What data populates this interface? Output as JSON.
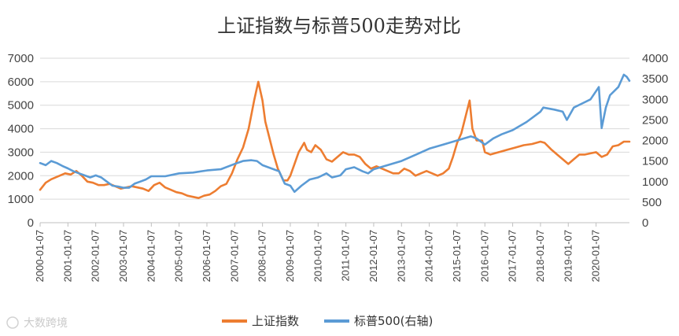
{
  "watermark": "大数跨境",
  "chart_data": {
    "type": "line",
    "title": "上证指数与标普500走势对比",
    "y_left": {
      "ticks": [
        "0",
        "1000",
        "2000",
        "3000",
        "4000",
        "5000",
        "6000",
        "7000"
      ],
      "range": [
        0,
        7000
      ]
    },
    "y_right": {
      "ticks": [
        "0",
        "500",
        "1000",
        "1500",
        "2000",
        "2500",
        "3000",
        "3500",
        "4000"
      ],
      "range": [
        0,
        4000
      ]
    },
    "x_range": [
      2000.0,
      2021.2
    ],
    "x_ticks": [
      {
        "label": "2000-01-07",
        "x": 2000.0
      },
      {
        "label": "2001-01-07",
        "x": 2001.0
      },
      {
        "label": "2002-01-07",
        "x": 2002.0
      },
      {
        "label": "2003-01-07",
        "x": 2003.0
      },
      {
        "label": "2004-01-07",
        "x": 2004.0
      },
      {
        "label": "2005-01-07",
        "x": 2005.0
      },
      {
        "label": "2006-01-07",
        "x": 2006.0
      },
      {
        "label": "2007-01-07",
        "x": 2007.0
      },
      {
        "label": "2008-01-07",
        "x": 2008.0
      },
      {
        "label": "2009-01-07",
        "x": 2009.0
      },
      {
        "label": "2010-01-07",
        "x": 2010.0
      },
      {
        "label": "2011-01-07",
        "x": 2011.0
      },
      {
        "label": "2012-01-07",
        "x": 2012.0
      },
      {
        "label": "2013-01-07",
        "x": 2013.0
      },
      {
        "label": "2014-01-07",
        "x": 2014.0
      },
      {
        "label": "2015-01-07",
        "x": 2015.0
      },
      {
        "label": "2016-01-07",
        "x": 2016.0
      },
      {
        "label": "2017-01-07",
        "x": 2017.0
      },
      {
        "label": "2018-01-07",
        "x": 2018.0
      },
      {
        "label": "2019-01-07",
        "x": 2019.0
      },
      {
        "label": "2020-01-07",
        "x": 2020.0
      }
    ],
    "grid": true,
    "legend_position": "bottom",
    "series": [
      {
        "name": "上证指数",
        "axis": "left",
        "color": "#ED7D31",
        "x": [
          2000.0,
          2000.2,
          2000.4,
          2000.6,
          2000.9,
          2001.1,
          2001.3,
          2001.5,
          2001.7,
          2001.9,
          2002.1,
          2002.3,
          2002.5,
          2002.7,
          2002.9,
          2003.1,
          2003.3,
          2003.5,
          2003.7,
          2003.9,
          2004.1,
          2004.3,
          2004.5,
          2004.7,
          2004.9,
          2005.1,
          2005.3,
          2005.5,
          2005.7,
          2005.9,
          2006.1,
          2006.3,
          2006.5,
          2006.7,
          2006.9,
          2007.1,
          2007.3,
          2007.5,
          2007.7,
          2007.85,
          2008.0,
          2008.1,
          2008.25,
          2008.4,
          2008.55,
          2008.75,
          2008.9,
          2009.0,
          2009.15,
          2009.3,
          2009.5,
          2009.6,
          2009.75,
          2009.9,
          2010.1,
          2010.3,
          2010.5,
          2010.7,
          2010.9,
          2011.1,
          2011.3,
          2011.5,
          2011.7,
          2011.9,
          2012.1,
          2012.3,
          2012.5,
          2012.7,
          2012.9,
          2013.1,
          2013.3,
          2013.5,
          2013.7,
          2013.9,
          2014.1,
          2014.3,
          2014.5,
          2014.7,
          2014.85,
          2015.0,
          2015.15,
          2015.3,
          2015.45,
          2015.55,
          2015.7,
          2015.9,
          2016.0,
          2016.2,
          2016.5,
          2016.8,
          2017.1,
          2017.4,
          2017.7,
          2018.0,
          2018.15,
          2018.4,
          2018.6,
          2018.8,
          2019.0,
          2019.2,
          2019.4,
          2019.6,
          2019.8,
          2020.0,
          2020.2,
          2020.4,
          2020.6,
          2020.8,
          2021.0,
          2021.2
        ],
        "y": [
          1400,
          1700,
          1850,
          1950,
          2100,
          2050,
          2200,
          2000,
          1750,
          1700,
          1600,
          1600,
          1650,
          1550,
          1450,
          1500,
          1550,
          1500,
          1450,
          1350,
          1600,
          1700,
          1500,
          1400,
          1300,
          1250,
          1150,
          1100,
          1050,
          1150,
          1200,
          1350,
          1550,
          1650,
          2100,
          2700,
          3200,
          4000,
          5200,
          6000,
          5200,
          4300,
          3600,
          2900,
          2300,
          1800,
          1800,
          2000,
          2500,
          3000,
          3400,
          3100,
          3000,
          3300,
          3100,
          2700,
          2600,
          2800,
          3000,
          2900,
          2900,
          2800,
          2500,
          2300,
          2400,
          2300,
          2200,
          2100,
          2100,
          2300,
          2200,
          2000,
          2100,
          2200,
          2100,
          2000,
          2100,
          2300,
          2800,
          3400,
          3800,
          4500,
          5200,
          4000,
          3500,
          3500,
          3000,
          2900,
          3000,
          3100,
          3200,
          3300,
          3350,
          3450,
          3400,
          3100,
          2900,
          2700,
          2500,
          2700,
          2900,
          2900,
          2950,
          3000,
          2800,
          2900,
          3250,
          3300,
          3450,
          3450
        ]
      },
      {
        "name": "标普500(右轴)",
        "axis": "right",
        "color": "#5B9BD5",
        "x": [
          2000.0,
          2000.2,
          2000.4,
          2000.6,
          2000.8,
          2001.0,
          2001.2,
          2001.4,
          2001.6,
          2001.8,
          2002.0,
          2002.2,
          2002.4,
          2002.6,
          2002.8,
          2003.0,
          2003.2,
          2003.4,
          2003.6,
          2003.8,
          2004.0,
          2004.5,
          2005.0,
          2005.5,
          2006.0,
          2006.5,
          2007.0,
          2007.3,
          2007.6,
          2007.8,
          2008.0,
          2008.2,
          2008.4,
          2008.6,
          2008.8,
          2009.0,
          2009.15,
          2009.4,
          2009.7,
          2010.0,
          2010.3,
          2010.5,
          2010.8,
          2011.0,
          2011.3,
          2011.6,
          2011.8,
          2012.0,
          2012.5,
          2013.0,
          2013.5,
          2014.0,
          2014.5,
          2015.0,
          2015.5,
          2015.7,
          2016.0,
          2016.3,
          2016.6,
          2017.0,
          2017.5,
          2018.0,
          2018.1,
          2018.5,
          2018.8,
          2018.95,
          2019.2,
          2019.5,
          2019.8,
          2020.0,
          2020.1,
          2020.2,
          2020.35,
          2020.5,
          2020.8,
          2021.0,
          2021.1,
          2021.2
        ],
        "y": [
          1450,
          1400,
          1500,
          1450,
          1380,
          1320,
          1250,
          1200,
          1150,
          1100,
          1150,
          1100,
          1000,
          900,
          880,
          850,
          850,
          950,
          1000,
          1050,
          1130,
          1130,
          1200,
          1220,
          1270,
          1300,
          1430,
          1500,
          1520,
          1500,
          1400,
          1350,
          1300,
          1250,
          950,
          900,
          750,
          900,
          1050,
          1100,
          1200,
          1100,
          1150,
          1300,
          1350,
          1250,
          1200,
          1300,
          1400,
          1500,
          1650,
          1800,
          1900,
          2000,
          2100,
          2050,
          1900,
          2050,
          2150,
          2250,
          2450,
          2700,
          2800,
          2750,
          2700,
          2500,
          2800,
          2900,
          3000,
          3200,
          3300,
          2300,
          2800,
          3100,
          3300,
          3600,
          3550,
          3450
        ]
      }
    ]
  }
}
